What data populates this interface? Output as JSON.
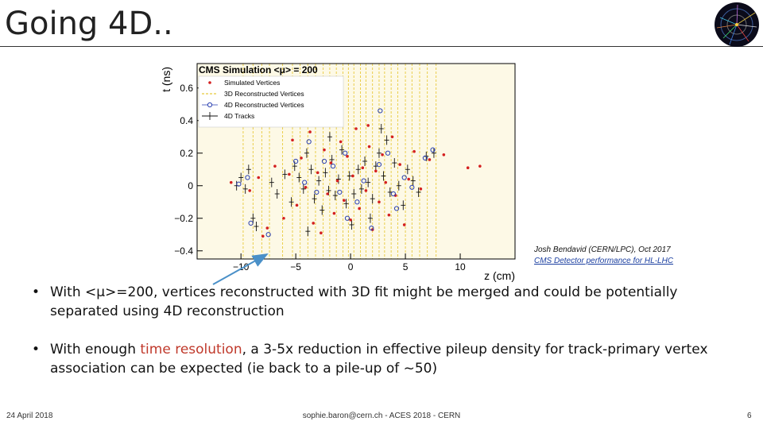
{
  "slide": {
    "title": "Going 4D..",
    "credit_line1": "Josh Bendavid (CERN/LPC), Oct 2017",
    "credit_line2": "CMS Detector performance for HL-LHC",
    "bullets": [
      {
        "text": "With <μ>=200, vertices reconstructed with 3D fit might be merged and could be potentially separated using 4D reconstruction"
      },
      {
        "pre": "With enough ",
        "highlight": "time resolution",
        "post": ", a 3-5x reduction in effective pileup density for track-primary vertex association can be expected (ie back to a pile-up of ~50)"
      }
    ],
    "footer_date": "24 April 2018",
    "footer_center": "sophie.baron@cern.ch - ACES 2018 - CERN",
    "footer_page": "6",
    "colors": {
      "highlight": "#c0392b",
      "arrow": "#4a90c8"
    }
  },
  "chart_data": {
    "type": "scatter",
    "title": "CMS Simulation <μ> = 200",
    "xlabel": "z (cm)",
    "ylabel": "t (ns)",
    "xlim": [
      -14,
      15
    ],
    "ylim": [
      -0.45,
      0.75
    ],
    "xticks": [
      -10,
      -5,
      0,
      5,
      10
    ],
    "xtick_labels": [
      "−10",
      "−5",
      "0",
      "5",
      "10"
    ],
    "yticks": [
      -0.4,
      -0.2,
      0,
      0.2,
      0.4,
      0.6
    ],
    "ytick_labels": [
      "−0.4",
      "−0.2",
      "0",
      "0.2",
      "0.4",
      "0.6"
    ],
    "legend": [
      {
        "label": "Simulated Vertices",
        "marker": "red-dot"
      },
      {
        "label": "3D Reconstructed Vertices",
        "marker": "yellow-dashed-line"
      },
      {
        "label": "4D Reconstructed Vertices",
        "marker": "blue-open-circle"
      },
      {
        "label": "4D Tracks",
        "marker": "black-cross"
      }
    ],
    "legend_position": "top-left",
    "recon3d_z": [
      -9.8,
      -8.9,
      -8.1,
      -7.4,
      -6.2,
      -5.3,
      -4.6,
      -3.9,
      -3.2,
      -2.5,
      -1.9,
      -1.3,
      -0.7,
      -0.2,
      0.3,
      0.9,
      1.4,
      2.0,
      2.6,
      3.1,
      3.7,
      4.3,
      5.0,
      5.6,
      6.3,
      7.0,
      7.8
    ],
    "series": [
      {
        "name": "Simulated Vertices",
        "points": [
          [
            -10.9,
            0.02
          ],
          [
            -9.2,
            -0.03
          ],
          [
            -8.4,
            0.05
          ],
          [
            -7.6,
            -0.26
          ],
          [
            -6.9,
            0.12
          ],
          [
            -6.1,
            -0.2
          ],
          [
            -5.6,
            0.07
          ],
          [
            -5.3,
            0.28
          ],
          [
            -4.9,
            -0.12
          ],
          [
            -4.5,
            0.17
          ],
          [
            -4.1,
            -0.01
          ],
          [
            -3.7,
            0.33
          ],
          [
            -3.4,
            -0.23
          ],
          [
            -3.0,
            0.08
          ],
          [
            -2.7,
            -0.29
          ],
          [
            -2.4,
            0.22
          ],
          [
            -2.1,
            -0.05
          ],
          [
            -1.8,
            0.14
          ],
          [
            -1.5,
            -0.17
          ],
          [
            -1.2,
            0.03
          ],
          [
            -0.9,
            0.27
          ],
          [
            -0.6,
            -0.09
          ],
          [
            -0.3,
            0.18
          ],
          [
            0.0,
            -0.21
          ],
          [
            0.2,
            0.06
          ],
          [
            0.5,
            0.35
          ],
          [
            0.8,
            -0.14
          ],
          [
            1.1,
            0.11
          ],
          [
            1.4,
            -0.03
          ],
          [
            1.7,
            0.24
          ],
          [
            2.0,
            -0.27
          ],
          [
            2.3,
            0.09
          ],
          [
            2.6,
            -0.1
          ],
          [
            2.9,
            0.19
          ],
          [
            3.2,
            0.02
          ],
          [
            3.5,
            -0.18
          ],
          [
            3.8,
            0.3
          ],
          [
            4.1,
            -0.06
          ],
          [
            4.5,
            0.13
          ],
          [
            4.9,
            -0.24
          ],
          [
            5.3,
            0.04
          ],
          [
            5.8,
            0.21
          ],
          [
            6.4,
            -0.02
          ],
          [
            7.2,
            0.16
          ],
          [
            8.5,
            0.19
          ],
          [
            10.7,
            0.11
          ],
          [
            11.8,
            0.12
          ],
          [
            -8.0,
            -0.31
          ],
          [
            -2.2,
            0.41
          ],
          [
            1.6,
            0.37
          ]
        ]
      },
      {
        "name": "4D Reconstructed Vertices",
        "points": [
          [
            -10.2,
            0.01
          ],
          [
            -9.4,
            0.05
          ],
          [
            -7.5,
            -0.3
          ],
          [
            -9.1,
            -0.23
          ],
          [
            -5.0,
            0.15
          ],
          [
            -4.2,
            0.02
          ],
          [
            -3.1,
            -0.04
          ],
          [
            -2.4,
            0.15
          ],
          [
            -1.6,
            0.12
          ],
          [
            -1.0,
            -0.04
          ],
          [
            -0.5,
            0.2
          ],
          [
            0.6,
            -0.1
          ],
          [
            1.2,
            0.03
          ],
          [
            2.7,
            0.46
          ],
          [
            2.6,
            0.13
          ],
          [
            3.4,
            0.2
          ],
          [
            4.2,
            -0.14
          ],
          [
            4.9,
            0.05
          ],
          [
            5.6,
            -0.01
          ],
          [
            6.8,
            0.17
          ],
          [
            7.5,
            0.22
          ],
          [
            3.9,
            -0.05
          ],
          [
            -3.8,
            0.27
          ],
          [
            -0.3,
            -0.2
          ],
          [
            1.9,
            -0.26
          ]
        ]
      },
      {
        "name": "4D Tracks",
        "points": [
          [
            -10.4,
            0.0
          ],
          [
            -10.0,
            0.05
          ],
          [
            -9.6,
            -0.02
          ],
          [
            -9.3,
            0.1
          ],
          [
            -8.9,
            -0.2
          ],
          [
            -8.6,
            -0.25
          ],
          [
            -7.2,
            0.02
          ],
          [
            -6.7,
            -0.05
          ],
          [
            -6.0,
            0.07
          ],
          [
            -5.4,
            -0.1
          ],
          [
            -5.1,
            0.12
          ],
          [
            -4.7,
            0.05
          ],
          [
            -4.3,
            -0.02
          ],
          [
            -4.0,
            0.2
          ],
          [
            -3.6,
            0.1
          ],
          [
            -3.3,
            -0.08
          ],
          [
            -2.9,
            0.03
          ],
          [
            -2.6,
            -0.15
          ],
          [
            -2.3,
            0.08
          ],
          [
            -2.0,
            -0.03
          ],
          [
            -1.7,
            0.16
          ],
          [
            -1.4,
            -0.06
          ],
          [
            -1.1,
            0.04
          ],
          [
            -0.8,
            0.22
          ],
          [
            -0.4,
            -0.11
          ],
          [
            -0.1,
            0.06
          ],
          [
            0.3,
            -0.05
          ],
          [
            0.7,
            0.1
          ],
          [
            1.0,
            -0.02
          ],
          [
            1.3,
            0.15
          ],
          [
            1.6,
            0.02
          ],
          [
            2.0,
            -0.08
          ],
          [
            2.3,
            0.12
          ],
          [
            2.6,
            0.2
          ],
          [
            3.0,
            0.06
          ],
          [
            3.3,
            0.28
          ],
          [
            3.6,
            -0.04
          ],
          [
            4.0,
            0.14
          ],
          [
            4.4,
            0.0
          ],
          [
            4.8,
            -0.12
          ],
          [
            5.2,
            0.1
          ],
          [
            5.7,
            0.03
          ],
          [
            6.2,
            -0.04
          ],
          [
            6.9,
            0.18
          ],
          [
            7.6,
            0.2
          ],
          [
            -3.9,
            -0.28
          ],
          [
            0.1,
            -0.24
          ],
          [
            1.8,
            -0.2
          ],
          [
            -1.9,
            0.3
          ],
          [
            2.8,
            0.35
          ]
        ]
      }
    ]
  }
}
